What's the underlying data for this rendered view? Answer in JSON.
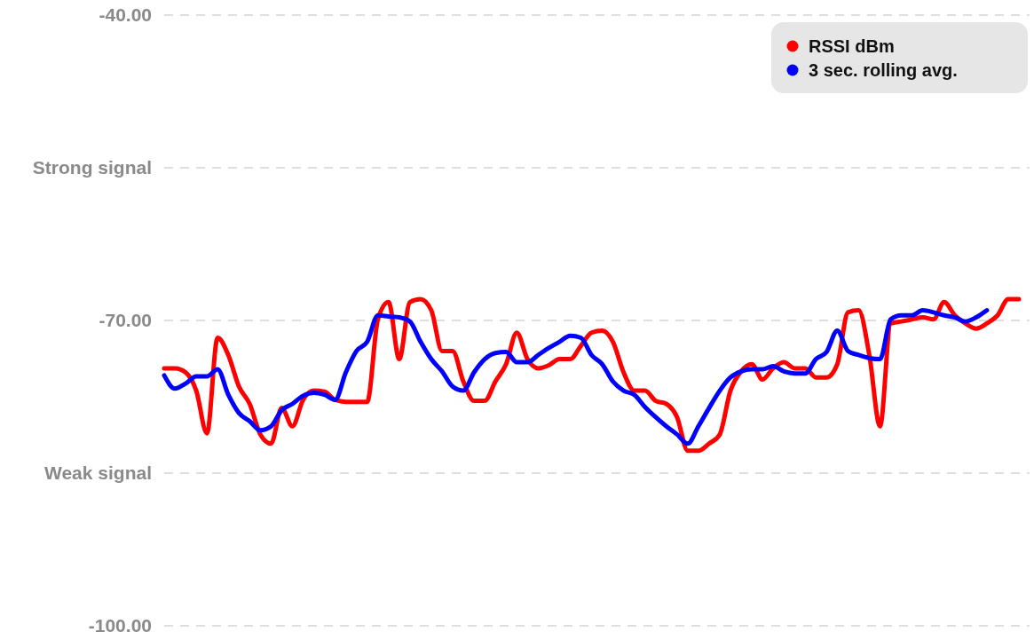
{
  "chart_data": {
    "type": "line",
    "categories": [
      null,
      null,
      null,
      null,
      null,
      null,
      null,
      null,
      null,
      null,
      null,
      null,
      null,
      null,
      null,
      null,
      null,
      null,
      null,
      null,
      null,
      null,
      null,
      null,
      null,
      null,
      null,
      null,
      null,
      null,
      null,
      null,
      null,
      null,
      null,
      null,
      null,
      null,
      null,
      null,
      null,
      null,
      null,
      null,
      null,
      null,
      null,
      null,
      null,
      null,
      null,
      null,
      null,
      null,
      null,
      null,
      null,
      null,
      null,
      null,
      null,
      null,
      null,
      null,
      null,
      null,
      null,
      null,
      null,
      null,
      null,
      null,
      null,
      null,
      null,
      null,
      null,
      null,
      null,
      null,
      null
    ],
    "series": [
      {
        "name": "RSSI dBm",
        "color": "#ff0000",
        "values": [
          -74.7,
          -74.7,
          -75.1,
          -76.9,
          -81.1,
          -71.7,
          -73.4,
          -76.5,
          -78.2,
          -81.2,
          -82.1,
          -78.6,
          -80.4,
          -77.8,
          -76.9,
          -77.0,
          -77.8,
          -78.0,
          -78.0,
          -78.0,
          -69.9,
          -68.2,
          -73.8,
          -68.2,
          -67.9,
          -69.0,
          -73.0,
          -73.0,
          -76.0,
          -77.9,
          -77.9,
          -76.0,
          -74.3,
          -71.2,
          -73.8,
          -74.7,
          -74.4,
          -73.8,
          -73.8,
          -72.5,
          -71.2,
          -71.0,
          -72.1,
          -75.1,
          -76.9,
          -76.9,
          -77.9,
          -78.2,
          -79.5,
          -82.8,
          -82.8,
          -82.1,
          -81.2,
          -76.9,
          -75.0,
          -74.3,
          -75.8,
          -74.7,
          -74.1,
          -74.7,
          -74.7,
          -75.6,
          -75.6,
          -74.3,
          -69.2,
          -69.0,
          -73.4,
          -80.4,
          -70.3,
          -70.1,
          -69.9,
          -69.7,
          -69.9,
          -68.2,
          -69.5,
          -70.3,
          -70.8,
          -70.3,
          -69.5,
          -67.9,
          -67.9
        ]
      },
      {
        "name": "3 sec. rolling avg.",
        "color": "#0000ff",
        "values": [
          -75.4,
          -76.7,
          -76.2,
          -75.5,
          -75.5,
          -74.8,
          -77.3,
          -79.1,
          -79.9,
          -80.8,
          -80.4,
          -78.8,
          -78.2,
          -77.4,
          -77.1,
          -77.3,
          -77.8,
          -75.1,
          -73.0,
          -72.1,
          -69.5,
          -69.6,
          -69.7,
          -70.1,
          -72.1,
          -73.8,
          -75.0,
          -76.5,
          -76.9,
          -75.1,
          -73.8,
          -73.2,
          -73.1,
          -74.1,
          -74.1,
          -73.4,
          -72.7,
          -72.1,
          -71.5,
          -71.7,
          -73.4,
          -74.3,
          -76.0,
          -76.9,
          -77.3,
          -78.5,
          -79.5,
          -80.4,
          -81.2,
          -82.1,
          -80.4,
          -78.6,
          -76.9,
          -75.6,
          -75.0,
          -74.8,
          -74.8,
          -74.5,
          -75.0,
          -75.2,
          -75.2,
          -73.8,
          -73.1,
          -71.0,
          -73.0,
          -73.4,
          -73.7,
          -73.8,
          -69.9,
          -69.5,
          -69.5,
          -69.0,
          -69.2,
          -69.5,
          -69.7,
          -70.1,
          -69.7,
          -69.0,
          null,
          null,
          null
        ]
      }
    ],
    "ylim": [
      -100,
      -40
    ],
    "yticks": [
      {
        "value": -40,
        "label": "-40.00"
      },
      {
        "value": -55,
        "label": "Strong signal"
      },
      {
        "value": -70,
        "label": "-70.00"
      },
      {
        "value": -85,
        "label": "Weak signal"
      },
      {
        "value": -100,
        "label": "-100.00"
      }
    ],
    "grid": "y",
    "legend": "top right",
    "tick_labels": "y",
    "marker": "none",
    "line_style": "solid"
  }
}
